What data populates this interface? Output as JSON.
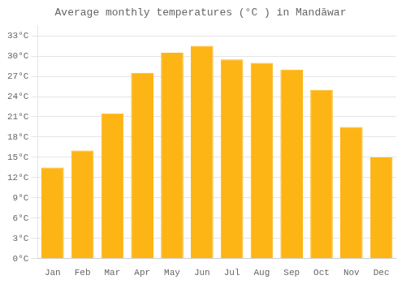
{
  "chart_data": {
    "type": "bar",
    "title": "Average monthly temperatures (°C ) in Mandāwar",
    "categories": [
      "Jan",
      "Feb",
      "Mar",
      "Apr",
      "May",
      "Jun",
      "Jul",
      "Aug",
      "Sep",
      "Oct",
      "Nov",
      "Dec"
    ],
    "values": [
      13.5,
      16.0,
      21.5,
      27.5,
      30.5,
      31.5,
      29.5,
      29.0,
      28.0,
      25.0,
      19.5,
      15.0
    ],
    "color": "#FDB515",
    "ylim": [
      0,
      34.5
    ],
    "yticks": [
      {
        "value": 0,
        "label": "0°C"
      },
      {
        "value": 3,
        "label": "3°C"
      },
      {
        "value": 6,
        "label": "6°C"
      },
      {
        "value": 9,
        "label": "9°C"
      },
      {
        "value": 12,
        "label": "12°C"
      },
      {
        "value": 15,
        "label": "15°C"
      },
      {
        "value": 18,
        "label": "18°C"
      },
      {
        "value": 21,
        "label": "21°C"
      },
      {
        "value": 24,
        "label": "24°C"
      },
      {
        "value": 27,
        "label": "27°C"
      },
      {
        "value": 30,
        "label": "30°C"
      },
      {
        "value": 33,
        "label": "33°C"
      }
    ],
    "grid": true
  }
}
